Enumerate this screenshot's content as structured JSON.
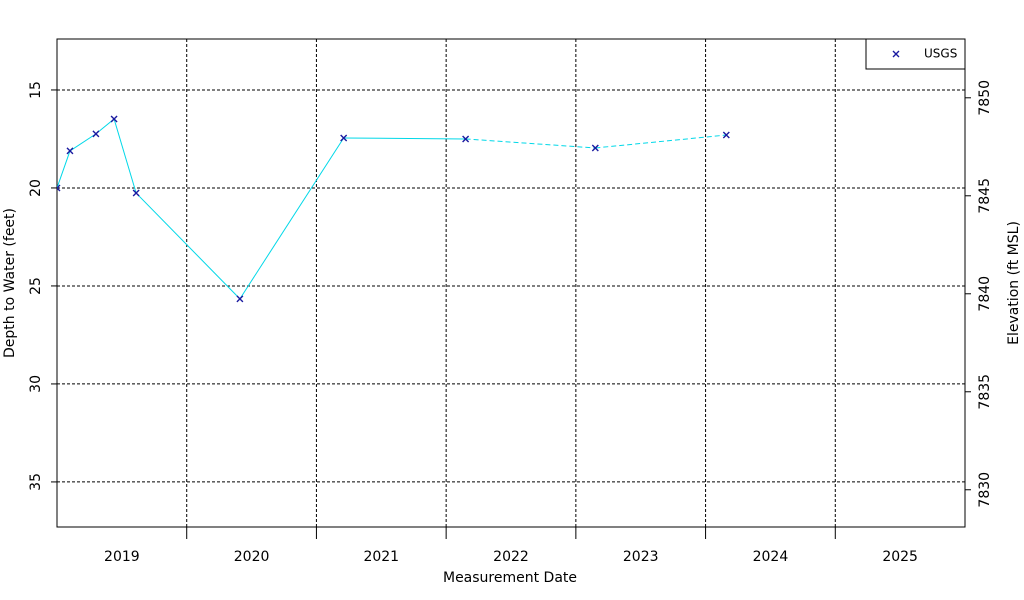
{
  "chart_data": {
    "type": "line",
    "x_label": "Measurement Date",
    "y_label": "Depth to Water (feet)",
    "y2_label": "Elevation (ft MSL)",
    "x": [
      2019.0,
      2019.1,
      2019.3,
      2019.44,
      2019.61,
      2020.41,
      2021.21,
      2022.15,
      2023.15,
      2024.16
    ],
    "series": [
      {
        "name": "USGS",
        "color": "#00d8e8",
        "marker_color": "#1a1aa0",
        "values": [
          20.0,
          18.11,
          17.24,
          16.48,
          20.26,
          25.66,
          17.45,
          17.5,
          17.96,
          17.3
        ],
        "segment_styles": [
          "solid",
          "solid",
          "solid",
          "solid",
          "solid",
          "solid",
          "solid",
          "dashed",
          "dashed"
        ]
      }
    ],
    "xlim": [
      2019.0,
      2026.0
    ],
    "xticks": [
      {
        "value": 2019.5,
        "label": "2019"
      },
      {
        "value": 2020.5,
        "label": "2020"
      },
      {
        "value": 2021.5,
        "label": "2021"
      },
      {
        "value": 2022.5,
        "label": "2022"
      },
      {
        "value": 2023.5,
        "label": "2023"
      },
      {
        "value": 2024.5,
        "label": "2024"
      },
      {
        "value": 2025.5,
        "label": "2025"
      }
    ],
    "xgrid": [
      2020,
      2021,
      2022,
      2023,
      2024,
      2025
    ],
    "ylim": [
      12.4,
      37.3
    ],
    "yticks": [
      15,
      20,
      25,
      30,
      35
    ],
    "y_inverted": true,
    "y2lim": [
      7853.0,
      7828.1
    ],
    "y2ticks": [
      7830,
      7835,
      7840,
      7845,
      7850
    ],
    "grid": true,
    "legend": "upper right"
  }
}
